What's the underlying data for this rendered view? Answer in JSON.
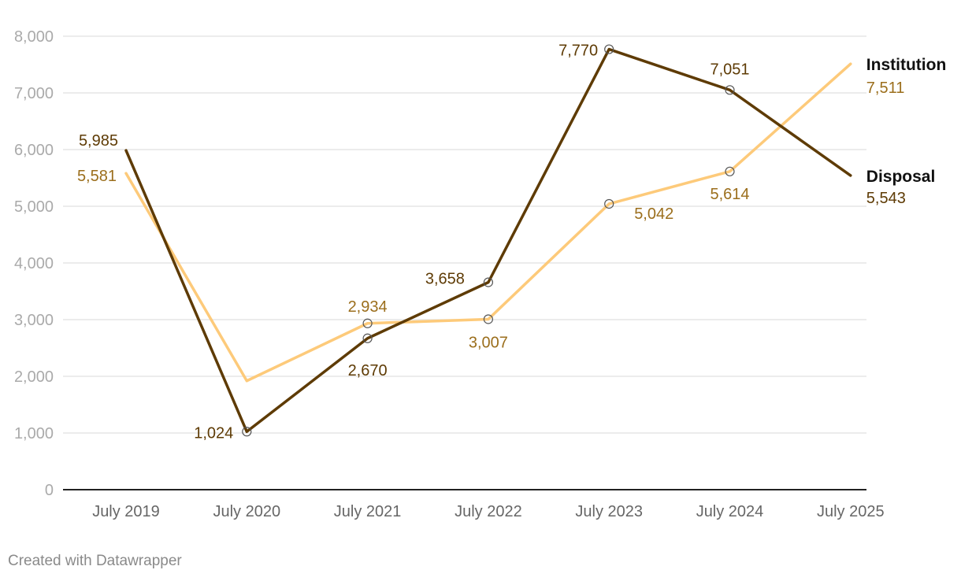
{
  "chart_data": {
    "type": "line",
    "categories": [
      "July 2019",
      "July 2020",
      "July 2021",
      "July 2022",
      "July 2023",
      "July 2024",
      "July 2025"
    ],
    "ylim": [
      0,
      8000
    ],
    "yticks": [
      "0",
      "1,000",
      "2,000",
      "3,000",
      "4,000",
      "5,000",
      "6,000",
      "7,000",
      "8,000"
    ],
    "grid": true,
    "series": [
      {
        "name": "Institution",
        "color": "#fdca7a",
        "label_color": "#9b6e1c",
        "values": [
          5581,
          1920,
          2934,
          3007,
          5042,
          5614,
          7511
        ],
        "labels": [
          "5,581",
          "",
          "2,934",
          "3,007",
          "5,042",
          "5,614",
          "7,511"
        ]
      },
      {
        "name": "Disposal",
        "color": "#5e3b05",
        "label_color": "#5e3b05",
        "values": [
          5985,
          1024,
          2670,
          3658,
          7770,
          7051,
          5543
        ],
        "labels": [
          "5,985",
          "1,024",
          "2,670",
          "3,658",
          "7,770",
          "7,051",
          "5,543"
        ]
      }
    ]
  },
  "footer": "Created with Datawrapper"
}
